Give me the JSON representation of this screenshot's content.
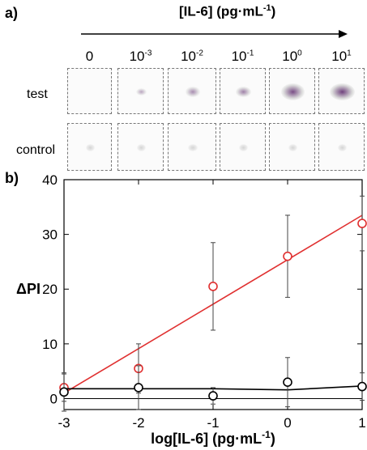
{
  "panel_a": {
    "label": "a)",
    "concentration_title": "[IL-6] (pg·mL",
    "concentration_title_sup": "-1",
    "concentration_title_end": ")",
    "columns": [
      {
        "base": "0",
        "exp": ""
      },
      {
        "base": "10",
        "exp": "-3"
      },
      {
        "base": "10",
        "exp": "-2"
      },
      {
        "base": "10",
        "exp": "-1"
      },
      {
        "base": "10",
        "exp": "0"
      },
      {
        "base": "10",
        "exp": "1"
      }
    ],
    "rows": [
      "test",
      "control"
    ],
    "test_signal_level": [
      0.0,
      0.15,
      0.35,
      0.45,
      0.85,
      0.95
    ],
    "spot_color": "#6a3a78"
  },
  "panel_b": {
    "label": "b)"
  },
  "chart_data": {
    "type": "scatter",
    "xlabel": "log[IL-6] (pg·mL",
    "xlabel_sup": "-1",
    "xlabel_end": ")",
    "ylabel": "ΔPI",
    "xlim": [
      -3,
      1
    ],
    "ylim": [
      -2,
      40
    ],
    "xticks": [
      -3,
      -2,
      -1,
      0,
      1
    ],
    "yticks": [
      0,
      10,
      20,
      30,
      40
    ],
    "series": [
      {
        "color": "#e03030",
        "x": [
          -3,
          -2,
          -1,
          0,
          1
        ],
        "y": [
          2.0,
          5.5,
          20.5,
          26.0,
          32.0
        ],
        "err": [
          2.5,
          4.5,
          8.0,
          7.5,
          5.0
        ],
        "fit": [
          [
            -3,
            1.0
          ],
          [
            1,
            33.5
          ]
        ]
      },
      {
        "color": "#000000",
        "x": [
          -3,
          -2,
          -1,
          0,
          1
        ],
        "y": [
          1.2,
          2.0,
          0.5,
          3.0,
          2.2
        ],
        "err": [
          3.5,
          4.0,
          1.5,
          4.5,
          2.5
        ],
        "fit": [
          [
            -3,
            1.8
          ],
          [
            -1,
            1.8
          ],
          [
            0,
            1.6
          ],
          [
            1,
            2.3
          ]
        ]
      }
    ]
  }
}
